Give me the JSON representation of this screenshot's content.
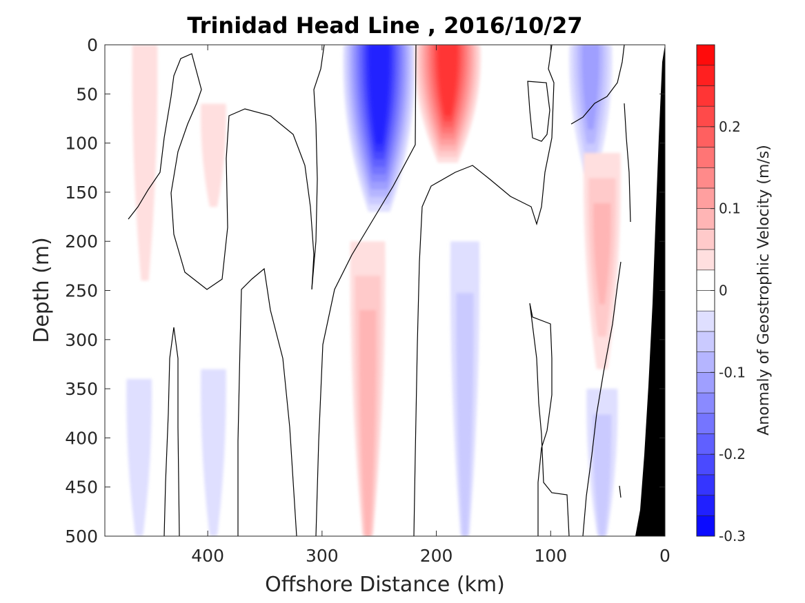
{
  "chart_data": {
    "type": "heatmap",
    "title": "Trinidad Head Line , 2016/10/27",
    "xlabel": "Offshore Distance (km)",
    "ylabel": "Depth (m)",
    "xlim": [
      490,
      0
    ],
    "ylim": [
      0,
      500
    ],
    "x_ticks": [
      400,
      300,
      200,
      100,
      0
    ],
    "y_ticks": [
      0,
      50,
      100,
      150,
      200,
      250,
      300,
      350,
      400,
      450,
      500
    ],
    "colorbar": {
      "label": "Anomaly of Geostrophic Velocity (m/s)",
      "range": [
        -0.3,
        0.3
      ],
      "step": 0.025,
      "ticks": [
        -0.3,
        -0.2,
        -0.1,
        0,
        0.1,
        0.2
      ],
      "tick_labels": [
        "-0.3",
        "-0.2",
        "-0.1",
        "0",
        "0.1",
        "0.2"
      ],
      "colormap": "blue-white-red"
    },
    "features": [
      {
        "center_km": 455,
        "depth_range": [
          0,
          240
        ],
        "value": 0.03
      },
      {
        "center_km": 395,
        "depth_range": [
          60,
          165
        ],
        "value": 0.03
      },
      {
        "center_km": 250,
        "depth_range": [
          0,
          170
        ],
        "value": -0.27
      },
      {
        "center_km": 190,
        "depth_range": [
          0,
          120
        ],
        "value": 0.24
      },
      {
        "center_km": 65,
        "depth_range": [
          0,
          130
        ],
        "value": -0.12
      },
      {
        "center_km": 55,
        "depth_range": [
          110,
          330
        ],
        "value": 0.09
      },
      {
        "center_km": 260,
        "depth_range": [
          200,
          500
        ],
        "value": 0.08
      },
      {
        "center_km": 175,
        "depth_range": [
          200,
          500
        ],
        "value": -0.05
      },
      {
        "center_km": 395,
        "depth_range": [
          330,
          500
        ],
        "value": -0.03
      },
      {
        "center_km": 460,
        "depth_range": [
          340,
          500
        ],
        "value": -0.03
      },
      {
        "center_km": 55,
        "depth_range": [
          350,
          500
        ],
        "value": -0.06
      }
    ],
    "topography_color": "#000000"
  }
}
